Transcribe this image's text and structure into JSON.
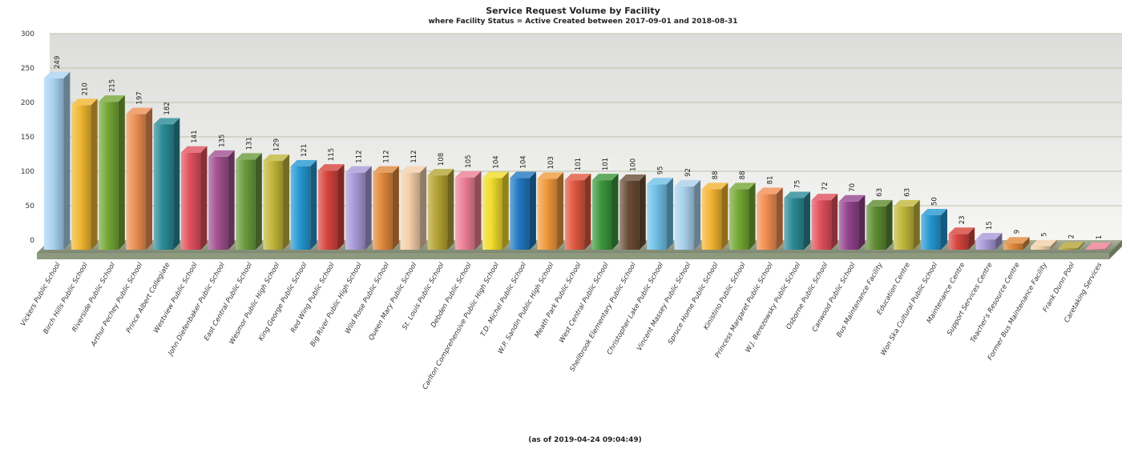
{
  "chart_data": {
    "type": "bar",
    "title": "Service Request Volume by Facility",
    "subtitle": "where Facility Status =  Active Created between 2017-09-01 and 2018-08-31",
    "footer": "(as of 2019-04-24 09:04:49)",
    "ylim": [
      0,
      300
    ],
    "yticks": [
      0,
      50,
      100,
      150,
      200,
      250,
      300
    ],
    "grid": true,
    "categories": [
      "Vickers Public School",
      "Birch Hills Public School",
      "Riverside Public School",
      "Arthur Pechey Public School",
      "Prince Albert Collegiate",
      "Westview Public School",
      "John Diefenbaker Public School",
      "East Central Public School",
      "Wesmor Public High School",
      "King George Public School",
      "Red Wing Public School",
      "Big River Public High School",
      "Wild Rose Public School",
      "Queen Mary Public School",
      "St. Louis Public School",
      "Debden Public School",
      "Carlton Comprehensive Public High School",
      "T.D. Michel Public School",
      "W.P. Sandin Public High School",
      "Meath Park Public School",
      "West Central Public School",
      "Shellbrook Elementary Public School",
      "Christopher Lake Public School",
      "Vincent Massey Public School",
      "Spruce Home Public School",
      "Kinistino Public School",
      "Princess Margaret Public School",
      "W.J. Berezowsky Public School",
      "Osborne Public School",
      "Canwood Public School",
      "Bus Maintenance Facility",
      "Education Centre",
      "Won Ska Cultural Public School",
      "Maintenance Centre",
      "Support Services Centre",
      "Teacher's Resource Centre",
      "Former Bus Maintenance Facility",
      "Frank Dunn Pool",
      "Caretaking Services"
    ],
    "values": [
      249,
      210,
      215,
      197,
      182,
      141,
      135,
      131,
      129,
      121,
      115,
      112,
      112,
      112,
      108,
      105,
      104,
      104,
      103,
      101,
      101,
      100,
      95,
      92,
      88,
      88,
      81,
      75,
      72,
      70,
      63,
      63,
      50,
      23,
      15,
      9,
      5,
      2,
      1
    ],
    "colors": [
      "#a9d3f2",
      "#f0b730",
      "#74a834",
      "#ec8f52",
      "#2a8a96",
      "#e0505c",
      "#a1508f",
      "#6a9a3c",
      "#c1b63a",
      "#2497d1",
      "#d6443c",
      "#a899d8",
      "#e0883a",
      "#f3cfa9",
      "#b5a434",
      "#ec7e95",
      "#f0dc2a",
      "#1f78c0",
      "#f09a3c",
      "#e0583e",
      "#3c963c",
      "#6a4c36",
      "#6ec0e6",
      "#a9d1ec",
      "#f4b431",
      "#74a834",
      "#f28e52",
      "#2a8a96",
      "#e0505c",
      "#93438d",
      "#5c8a30",
      "#c1b63a",
      "#2497d1",
      "#d6443c",
      "#a899d8",
      "#e0883a",
      "#f3cfa9",
      "#b5a434",
      "#ec7e95"
    ]
  }
}
